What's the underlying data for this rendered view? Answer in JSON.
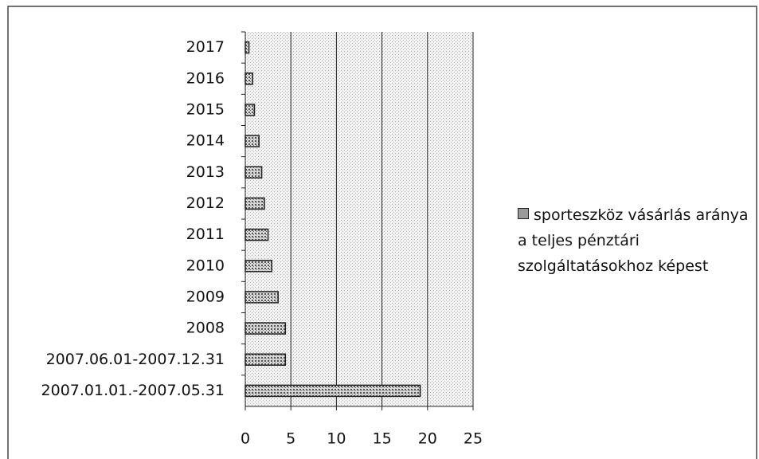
{
  "chart_data": {
    "type": "barh",
    "categories": [
      "2017",
      "2016",
      "2015",
      "2014",
      "2013",
      "2012",
      "2011",
      "2010",
      "2009",
      "2008",
      "2007.06.01-2007.12.31",
      "2007.01.01.-2007.05.31"
    ],
    "series": [
      {
        "name": "sporteszköz vásárlás aránya a teljes pénztári szolgáltatásokhoz képest",
        "color": "#9a9a9a",
        "values": [
          0.4,
          0.8,
          1.0,
          1.5,
          1.8,
          2.1,
          2.5,
          2.9,
          3.6,
          4.4,
          4.4,
          19.2
        ]
      }
    ],
    "xlim": [
      0,
      25
    ],
    "xticks": [
      0,
      5,
      10,
      15,
      20,
      25
    ],
    "grid": true,
    "legend": "right"
  }
}
